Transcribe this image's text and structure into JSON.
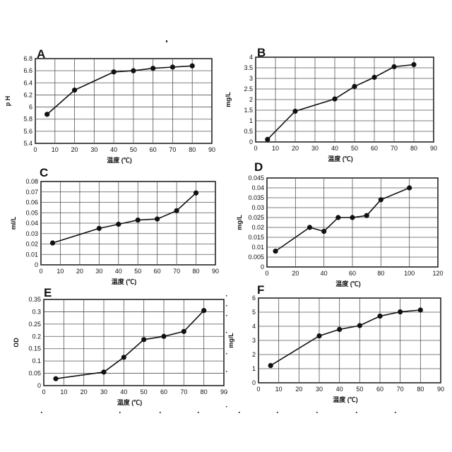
{
  "chart_data": [
    {
      "type": "line",
      "panel_label": "A",
      "xlabel": "温度 (℃)",
      "ylabel": "p H",
      "xlim": [
        0,
        90
      ],
      "ylim": [
        5.4,
        6.8
      ],
      "xticks": [
        "0",
        "10",
        "20",
        "30",
        "40",
        "50",
        "60",
        "70",
        "80",
        "90"
      ],
      "yticks": [
        "5.4",
        "5.6",
        "5.8",
        "6",
        "6.2",
        "6.4",
        "6.6",
        "6.8"
      ],
      "grid": true,
      "x": [
        6,
        20,
        40,
        50,
        60,
        70,
        80
      ],
      "y": [
        5.88,
        6.28,
        6.58,
        6.6,
        6.64,
        6.66,
        6.68
      ]
    },
    {
      "type": "line",
      "panel_label": "B",
      "xlabel": "温度 (℃)",
      "ylabel": "mg/L",
      "xlim": [
        0,
        90
      ],
      "ylim": [
        0,
        4
      ],
      "xticks": [
        "0",
        "10",
        "20",
        "30",
        "40",
        "50",
        "60",
        "70",
        "80",
        "90"
      ],
      "yticks": [
        "0",
        "0.5",
        "1",
        "1.5",
        "2",
        "2.5",
        "3",
        "3.5",
        "4"
      ],
      "grid": true,
      "x": [
        6,
        20,
        40,
        50,
        60,
        70,
        80
      ],
      "y": [
        0.12,
        1.45,
        2.03,
        2.62,
        3.05,
        3.55,
        3.65
      ]
    },
    {
      "type": "line",
      "panel_label": "C",
      "xlabel": "温度 (℃)",
      "ylabel": "ml/L",
      "xlim": [
        0,
        90
      ],
      "ylim": [
        0,
        0.08
      ],
      "xticks": [
        "0",
        "10",
        "20",
        "30",
        "40",
        "50",
        "60",
        "70",
        "80",
        "90"
      ],
      "yticks": [
        "0",
        "0.01",
        "0.02",
        "0.03",
        "0.04",
        "0.05",
        "0.06",
        "0.07",
        "0.08"
      ],
      "grid": true,
      "x": [
        6,
        30,
        40,
        50,
        60,
        70,
        80
      ],
      "y": [
        0.021,
        0.035,
        0.039,
        0.043,
        0.044,
        0.052,
        0.069
      ]
    },
    {
      "type": "line",
      "panel_label": "D",
      "xlabel": "温度 (℃)",
      "ylabel": "mg/L",
      "xlim": [
        0,
        120
      ],
      "ylim": [
        0,
        0.045
      ],
      "xticks": [
        "0",
        "20",
        "40",
        "60",
        "80",
        "100",
        "120"
      ],
      "yticks": [
        "0",
        "0.005",
        "0.01",
        "0.015",
        "0.02",
        "0.025",
        "0.03",
        "0.035",
        "0.04",
        "0.045"
      ],
      "grid": true,
      "x": [
        6,
        30,
        40,
        50,
        60,
        70,
        80,
        100
      ],
      "y": [
        0.008,
        0.02,
        0.018,
        0.025,
        0.025,
        0.026,
        0.034,
        0.04
      ]
    },
    {
      "type": "line",
      "panel_label": "E",
      "xlabel": "温度 (℃)",
      "ylabel": "OD",
      "xlim": [
        0,
        90
      ],
      "ylim": [
        0,
        0.35
      ],
      "xticks": [
        "0",
        "10",
        "20",
        "30",
        "40",
        "50",
        "60",
        "70",
        "80",
        "90"
      ],
      "yticks": [
        "0",
        "0.05",
        "0.1",
        "0.15",
        "0.2",
        "0.25",
        "0.3",
        "0.35"
      ],
      "grid": true,
      "x": [
        6,
        30,
        40,
        50,
        60,
        70,
        80
      ],
      "y": [
        0.028,
        0.055,
        0.115,
        0.187,
        0.2,
        0.22,
        0.305
      ]
    },
    {
      "type": "line",
      "panel_label": "F",
      "xlabel": "温度 (℃)",
      "ylabel": "mg/L",
      "xlim": [
        0,
        90
      ],
      "ylim": [
        0,
        6
      ],
      "xticks": [
        "0",
        "10",
        "20",
        "30",
        "40",
        "50",
        "60",
        "70",
        "80",
        "90"
      ],
      "yticks": [
        "0",
        "1",
        "2",
        "3",
        "4",
        "5",
        "6"
      ],
      "grid": true,
      "x": [
        6,
        30,
        40,
        50,
        60,
        70,
        80
      ],
      "y": [
        1.22,
        3.32,
        3.78,
        4.05,
        4.72,
        5.02,
        5.15
      ]
    }
  ]
}
